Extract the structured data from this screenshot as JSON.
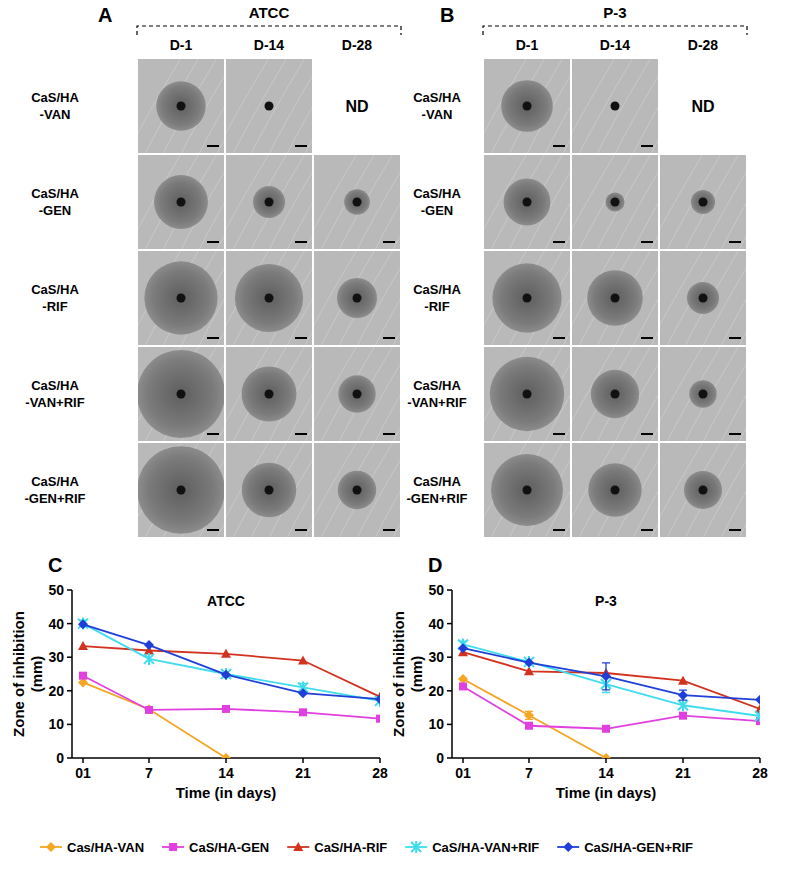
{
  "figure": {
    "panels": [
      {
        "label": "A",
        "strain": "ATCC",
        "columns": [
          "D-1",
          "D-14",
          "D-28"
        ],
        "nd": "ND",
        "rows": [
          {
            "name": [
              "CaS/HA",
              "-VAN"
            ],
            "zones": [
              22.5,
              0,
              null
            ]
          },
          {
            "name": [
              "CaS/HA",
              "-GEN"
            ],
            "zones": [
              24.5,
              14.6,
              11.7
            ]
          },
          {
            "name": [
              "CaS/HA",
              "-RIF"
            ],
            "zones": [
              33.3,
              31,
              18.2
            ]
          },
          {
            "name": [
              "CaS/HA",
              "-VAN+RIF"
            ],
            "zones": [
              40,
              25,
              17
            ]
          },
          {
            "name": [
              "CaS/HA",
              "-GEN+RIF"
            ],
            "zones": [
              39.8,
              24.8,
              17.5
            ]
          }
        ]
      },
      {
        "label": "B",
        "strain": "P-3",
        "columns": [
          "D-1",
          "D-14",
          "D-28"
        ],
        "nd": "ND",
        "rows": [
          {
            "name": [
              "CaS/HA",
              "-VAN"
            ],
            "zones": [
              23.5,
              0,
              null
            ]
          },
          {
            "name": [
              "CaS/HA",
              "-GEN"
            ],
            "zones": [
              21.3,
              8.7,
              11
            ]
          },
          {
            "name": [
              "CaS/HA",
              "-RIF"
            ],
            "zones": [
              31.5,
              25.3,
              14.6
            ]
          },
          {
            "name": [
              "CaS/HA",
              "-VAN+RIF"
            ],
            "zones": [
              33.8,
              22,
              12.5
            ]
          },
          {
            "name": [
              "CaS/HA",
              "-GEN+RIF"
            ],
            "zones": [
              32.7,
              24.3,
              17.3
            ]
          }
        ]
      }
    ]
  },
  "chart_data": [
    {
      "type": "line",
      "panel": "C",
      "title": "ATCC",
      "xlabel": "Time (in days)",
      "ylabel": "Zone of inhibition (mm)",
      "x": [
        1,
        7,
        14,
        21,
        28
      ],
      "xlim": [
        0,
        28
      ],
      "xticks": [
        {
          "value": 1,
          "label": "01"
        },
        7,
        14,
        21,
        28
      ],
      "ylim": [
        0,
        50
      ],
      "yticks": [
        0,
        10,
        20,
        30,
        40,
        50
      ],
      "grid": false,
      "legend": "bottom",
      "series": [
        {
          "name": "Cas/HA-VAN",
          "color": "#f5a623",
          "marker": "diamond",
          "values": [
            22.5,
            14.5,
            0,
            null,
            null
          ],
          "errors": [
            null,
            0.6,
            null,
            null,
            null
          ]
        },
        {
          "name": "CaS/HA-GEN",
          "color": "#e23fe0",
          "marker": "square",
          "values": [
            24.5,
            14.3,
            14.6,
            13.6,
            11.7
          ],
          "errors": [
            null,
            null,
            null,
            null,
            null
          ]
        },
        {
          "name": "CaS/HA-RIF",
          "color": "#d2321e",
          "marker": "triangle",
          "values": [
            33.3,
            32,
            31,
            29,
            18.2
          ],
          "errors": [
            null,
            null,
            null,
            null,
            null
          ]
        },
        {
          "name": "CaS/HA-VAN+RIF",
          "color": "#3fdcef",
          "marker": "cross",
          "values": [
            40,
            29.5,
            25,
            21,
            17
          ],
          "errors": [
            1,
            null,
            null,
            1.2,
            null
          ]
        },
        {
          "name": "CaS/HA-GEN+RIF",
          "color": "#1f3fd8",
          "marker": "diamond",
          "values": [
            39.8,
            33.6,
            24.8,
            19.3,
            17.5
          ],
          "errors": [
            null,
            null,
            null,
            null,
            null
          ]
        }
      ]
    },
    {
      "type": "line",
      "panel": "D",
      "title": "P-3",
      "xlabel": "Time (in days)",
      "ylabel": "Zone of inhibition (mm)",
      "x": [
        1,
        7,
        14,
        21,
        28
      ],
      "xlim": [
        0,
        28
      ],
      "xticks": [
        {
          "value": 1,
          "label": "01"
        },
        7,
        14,
        21,
        28
      ],
      "ylim": [
        0,
        50
      ],
      "yticks": [
        0,
        10,
        20,
        30,
        40,
        50
      ],
      "grid": false,
      "series": [
        {
          "color": "#f5a623",
          "marker": "diamond",
          "values": [
            23.5,
            12.7,
            0,
            null,
            null
          ],
          "errors": [
            null,
            1.2,
            null,
            null,
            null
          ]
        },
        {
          "color": "#e23fe0",
          "marker": "square",
          "values": [
            21.3,
            9.6,
            8.7,
            12.6,
            11
          ],
          "errors": [
            null,
            null,
            null,
            null,
            null
          ]
        },
        {
          "color": "#d2321e",
          "marker": "triangle",
          "values": [
            31.5,
            25.8,
            25.3,
            23,
            14.6
          ],
          "errors": [
            null,
            null,
            null,
            null,
            null
          ]
        },
        {
          "color": "#3fdcef",
          "marker": "cross",
          "values": [
            33.8,
            28.6,
            22,
            15.7,
            12.5
          ],
          "errors": [
            1,
            null,
            2.5,
            null,
            null
          ]
        },
        {
          "color": "#1f3fd8",
          "marker": "diamond",
          "values": [
            32.7,
            28.4,
            24.3,
            18.7,
            17.3
          ],
          "errors": [
            null,
            null,
            4,
            1.5,
            null
          ]
        }
      ]
    }
  ]
}
